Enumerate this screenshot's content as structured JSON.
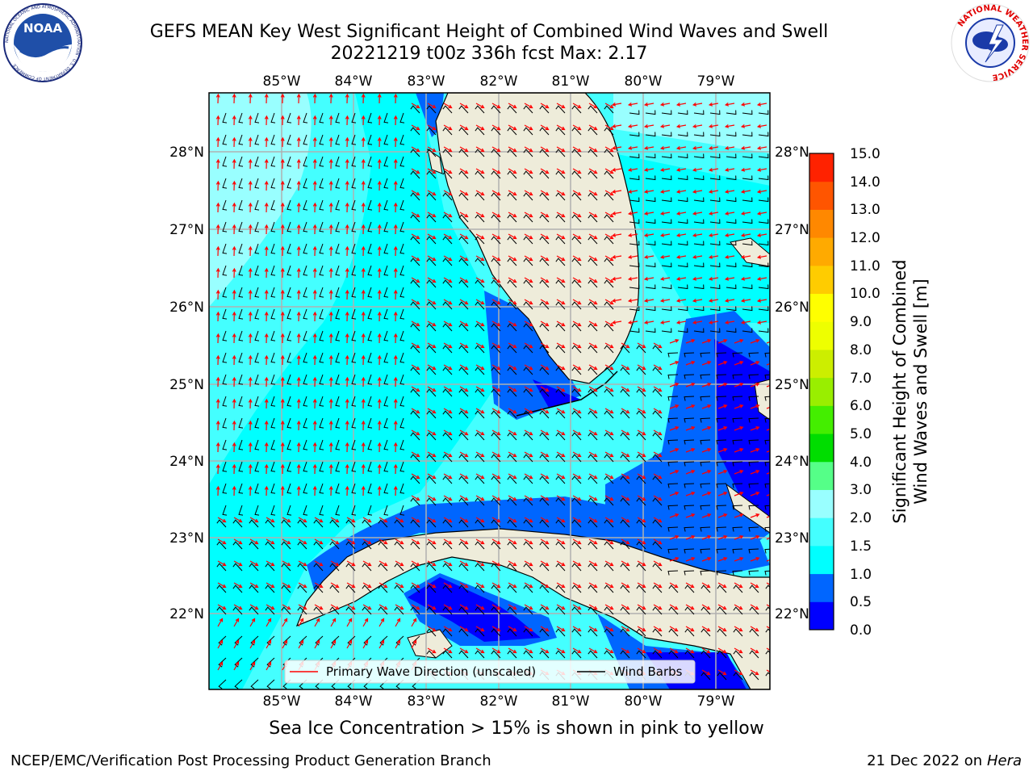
{
  "title": {
    "line1": "GEFS MEAN Key West Significant Height of Combined Wind Waves and Swell",
    "line2": "20221219 t00z 336h fcst   Max: 2.17"
  },
  "map": {
    "lon_labels": [
      "85°W",
      "84°W",
      "83°W",
      "82°W",
      "81°W",
      "80°W",
      "79°W"
    ],
    "lat_labels": [
      "28°N",
      "27°N",
      "26°N",
      "25°N",
      "24°N",
      "23°N",
      "22°N"
    ],
    "legend": {
      "primary_wave": "Primary Wave Direction (unscaled)",
      "wind_barbs": "Wind Barbs"
    }
  },
  "colorbar": {
    "label_line1": "Significant Height of Combined",
    "label_line2": "Wind Waves and Swell [m]",
    "ticks": [
      "0.0",
      "0.5",
      "1.0",
      "1.5",
      "2.0",
      "3.0",
      "4.0",
      "5.0",
      "6.0",
      "7.0",
      "8.0",
      "9.0",
      "10.0",
      "11.0",
      "12.0",
      "13.0",
      "14.0",
      "15.0"
    ],
    "colors": [
      "#0000ff",
      "#0066ff",
      "#00ffff",
      "#44ffff",
      "#99ffff",
      "#55ff88",
      "#00dd00",
      "#44ee00",
      "#99ee00",
      "#ccee00",
      "#eeff00",
      "#ffff00",
      "#ffcc00",
      "#ffaa00",
      "#ff8800",
      "#ff5500",
      "#ff2200"
    ]
  },
  "colors": {
    "land": "#eeecda",
    "wave_arrow": "#ff0000",
    "barb": "#000000",
    "grid": "#b0b0b0"
  },
  "logos": {
    "noaa_text": "NOAA",
    "noaa_ring": "NATIONAL OCEANIC AND ATMOSPHERIC ADMINISTRATION · U.S. DEPARTMENT OF COMMERCE",
    "nws_ring": "NATIONAL WEATHER SERVICE"
  },
  "footer": {
    "sea_ice": "Sea Ice Concentration > 15% is shown in pink to yellow",
    "credit": "NCEP/EMC/Verification Post Processing Product Generation Branch",
    "date": "21 Dec 2022 on",
    "host": "Hera"
  }
}
